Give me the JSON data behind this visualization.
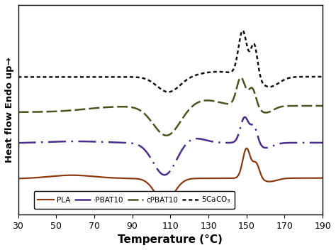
{
  "xlabel": "Temperature (°C)",
  "ylabel": "Heat flow Endo up→",
  "xlim": [
    30,
    190
  ],
  "xticks": [
    30,
    50,
    70,
    90,
    110,
    130,
    150,
    170,
    190
  ],
  "colors": {
    "PLA": "#8B3A10",
    "PBAT10": "#4B2E8A",
    "cPBAT10": "#4A5520",
    "5CaCO3": "#111111"
  },
  "legend_labels": {
    "PLA": "PLA",
    "PBAT10": "·PBAT10",
    "cPBAT10": "cPBAT10",
    "5CaCO3": "5CaCO$_3$"
  },
  "offsets": {
    "PLA": 0.0,
    "PBAT10": 0.42,
    "cPBAT10": 0.82,
    "5CaCO3": 1.2
  }
}
